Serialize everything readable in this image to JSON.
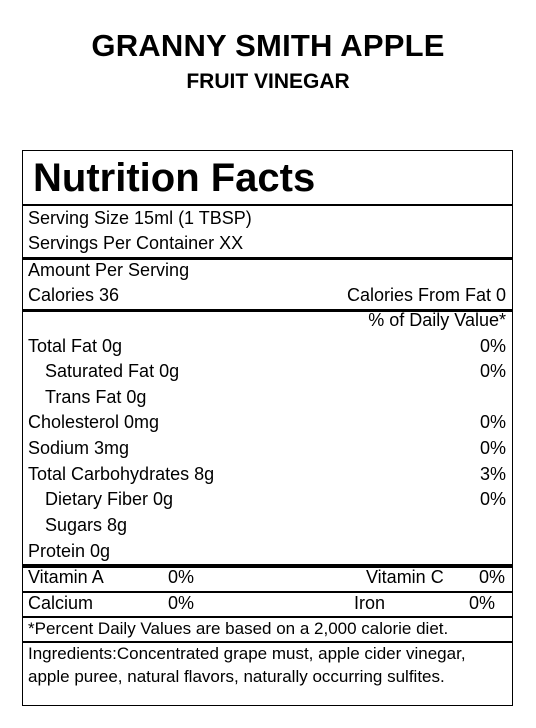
{
  "product": {
    "name": "GRANNY SMITH APPLE",
    "type": "FRUIT VINEGAR"
  },
  "label": {
    "heading": "Nutrition Facts",
    "serving_size": "Serving Size  15ml (1 TBSP)",
    "servings_per_container": "Servings Per Container  XX",
    "amount_per_serving": "Amount Per Serving",
    "calories": "Calories  36",
    "calories_from_fat": "Calories From Fat 0",
    "daily_value_header": "% of Daily Value*",
    "nutrients": [
      {
        "name": "Total Fat  0g",
        "dv": "0%"
      },
      {
        "name": "Saturated Fat  0g",
        "dv": "0%"
      },
      {
        "name": "Trans Fat  0g",
        "dv": ""
      },
      {
        "name": "Cholesterol  0mg",
        "dv": "0%"
      },
      {
        "name": "Sodium  3mg",
        "dv": "0%"
      },
      {
        "name": "Total Carbohydrates  8g",
        "dv": "3%"
      },
      {
        "name": "Dietary Fiber  0g",
        "dv": "0%"
      },
      {
        "name": "Sugars  8g",
        "dv": ""
      },
      {
        "name": "Protein  0g",
        "dv": ""
      }
    ],
    "vitamins": {
      "vitamin_a": "Vitamin A",
      "vitamin_a_dv": "0%",
      "vitamin_c": "Vitamin C",
      "vitamin_c_dv": "0%",
      "calcium": "Calcium",
      "calcium_dv": "0%",
      "iron": "Iron",
      "iron_dv": "0%"
    },
    "footnote": "*Percent Daily Values are based on a 2,000 calorie diet.",
    "ingredients_line1": "Ingredients:Concentrated grape must, apple cider vinegar,",
    "ingredients_line2": "apple puree, natural flavors, naturally occurring sulfites."
  }
}
